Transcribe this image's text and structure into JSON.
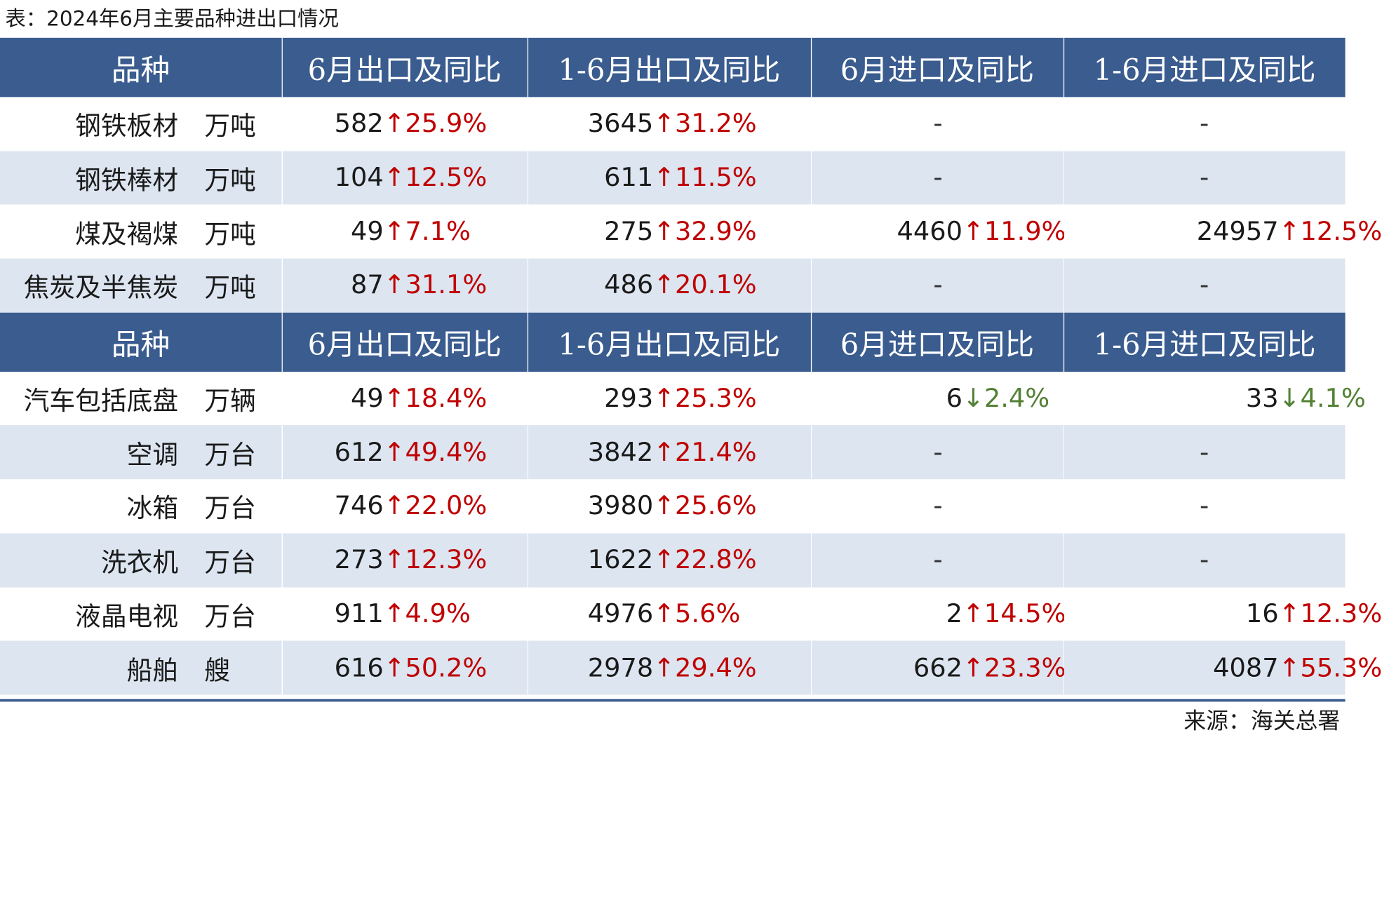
{
  "title": "表：2024年6月主要品种进出口情况",
  "source": "来源：海关总署",
  "headers": [
    "品种",
    "6月出口及同比",
    "1-6月出口及同比",
    "6月进口及同比",
    "1-6月进口及同比"
  ],
  "colors": {
    "header_bg": "#3a5c8f",
    "up": "#c00000",
    "down": "#538135",
    "stripe": "#dce5f0"
  },
  "section1": [
    {
      "name": "钢铁板材",
      "unit": "万吨",
      "exp_m": {
        "num": "582",
        "dir": "↑",
        "pct": "25.9%"
      },
      "exp_ytd": {
        "num": "3645",
        "dir": "↑",
        "pct": "31.2%"
      },
      "imp_m": "-",
      "imp_ytd": "-"
    },
    {
      "name": "钢铁棒材",
      "unit": "万吨",
      "exp_m": {
        "num": "104",
        "dir": "↑",
        "pct": "12.5%"
      },
      "exp_ytd": {
        "num": "611",
        "dir": "↑",
        "pct": "11.5%"
      },
      "imp_m": "-",
      "imp_ytd": "-"
    },
    {
      "name": "煤及褐煤",
      "unit": "万吨",
      "exp_m": {
        "num": "49",
        "dir": "↑",
        "pct": "7.1%"
      },
      "exp_ytd": {
        "num": "275",
        "dir": "↑",
        "pct": "32.9%"
      },
      "imp_m": {
        "num": "4460",
        "dir": "↑",
        "pct": "11.9%"
      },
      "imp_ytd": {
        "num": "24957",
        "dir": "↑",
        "pct": "12.5%"
      }
    },
    {
      "name": "焦炭及半焦炭",
      "unit": "万吨",
      "exp_m": {
        "num": "87",
        "dir": "↑",
        "pct": "31.1%"
      },
      "exp_ytd": {
        "num": "486",
        "dir": "↑",
        "pct": "20.1%"
      },
      "imp_m": "-",
      "imp_ytd": "-"
    }
  ],
  "section2": [
    {
      "name": "汽车包括底盘",
      "unit": "万辆",
      "exp_m": {
        "num": "49",
        "dir": "↑",
        "pct": "18.4%"
      },
      "exp_ytd": {
        "num": "293",
        "dir": "↑",
        "pct": "25.3%"
      },
      "imp_m": {
        "num": "6",
        "dir": "↓",
        "pct": "2.4%"
      },
      "imp_ytd": {
        "num": "33",
        "dir": "↓",
        "pct": "4.1%"
      }
    },
    {
      "name": "空调",
      "unit": "万台",
      "exp_m": {
        "num": "612",
        "dir": "↑",
        "pct": "49.4%"
      },
      "exp_ytd": {
        "num": "3842",
        "dir": "↑",
        "pct": "21.4%"
      },
      "imp_m": "-",
      "imp_ytd": "-"
    },
    {
      "name": "冰箱",
      "unit": "万台",
      "exp_m": {
        "num": "746",
        "dir": "↑",
        "pct": "22.0%"
      },
      "exp_ytd": {
        "num": "3980",
        "dir": "↑",
        "pct": "25.6%"
      },
      "imp_m": "-",
      "imp_ytd": "-"
    },
    {
      "name": "洗衣机",
      "unit": "万台",
      "exp_m": {
        "num": "273",
        "dir": "↑",
        "pct": "12.3%"
      },
      "exp_ytd": {
        "num": "1622",
        "dir": "↑",
        "pct": "22.8%"
      },
      "imp_m": "-",
      "imp_ytd": "-"
    },
    {
      "name": "液晶电视",
      "unit": "万台",
      "exp_m": {
        "num": "911",
        "dir": "↑",
        "pct": "4.9%"
      },
      "exp_ytd": {
        "num": "4976",
        "dir": "↑",
        "pct": "5.6%"
      },
      "imp_m": {
        "num": "2",
        "dir": "↑",
        "pct": "14.5%"
      },
      "imp_ytd": {
        "num": "16",
        "dir": "↑",
        "pct": "12.3%"
      }
    },
    {
      "name": "船舶",
      "unit": "艘",
      "exp_m": {
        "num": "616",
        "dir": "↑",
        "pct": "50.2%"
      },
      "exp_ytd": {
        "num": "2978",
        "dir": "↑",
        "pct": "29.4%"
      },
      "imp_m": {
        "num": "662",
        "dir": "↑",
        "pct": "23.3%"
      },
      "imp_ytd": {
        "num": "4087",
        "dir": "↑",
        "pct": "55.3%"
      }
    }
  ]
}
